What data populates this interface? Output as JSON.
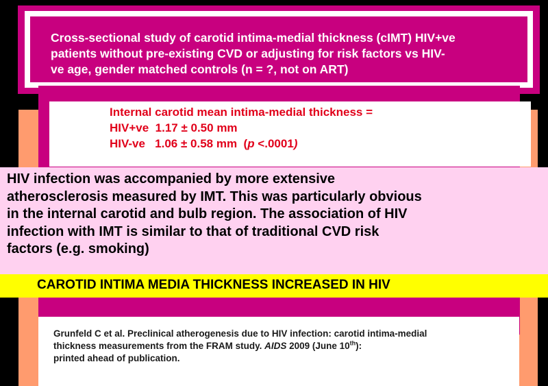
{
  "header": {
    "study_line1": "Cross-sectional study of carotid intima-medial thickness (cIMT) HIV+ve",
    "study_line2": "patients without  pre-existing CVD or adjusting for risk factors vs HIV-",
    "study_line3": "ve age, gender matched controls  (n = ?, not on ART)"
  },
  "results": {
    "title": "Internal carotid mean intima-medial thickness =",
    "hivpos_label": "HIV+ve",
    "hivpos_value": "1.17 ± 0.50 mm",
    "hivneg_label": "HIV-ve",
    "hivneg_value": "1.06 ± 0.58 mm",
    "p_prefix": "(",
    "p_symbol": "p",
    "p_value": " <.0001",
    "p_suffix": ")"
  },
  "summary": {
    "line1": "HIV infection was accompanied by more extensive",
    "line2": "atherosclerosis measured by IMT.  This was particularly obvious",
    "line3": "in the internal carotid and bulb region. The association of HIV",
    "line4": "infection with IMT is similar to that of traditional CVD risk",
    "line5": "factors (e.g. smoking)"
  },
  "banner": {
    "text": "CAROTID INTIMA MEDIA THICKNESS INCREASED IN HIV"
  },
  "citation": {
    "line1": "Grunfeld C et al. Preclinical atherogenesis due to HIV infection: carotid intima-medial",
    "line2_pre": "thickness measurements from the FRAM study.  ",
    "journal": "AIDS",
    "line2_mid": " 2009 (June 10",
    "sup": "th",
    "line2_post": "):",
    "line3": "printed ahead of publication."
  },
  "colors": {
    "magenta": "#c8007f",
    "orange": "#ff9b6e",
    "pink": "#ffd1f0",
    "yellow": "#ffff00",
    "red_text": "#e1001a"
  }
}
